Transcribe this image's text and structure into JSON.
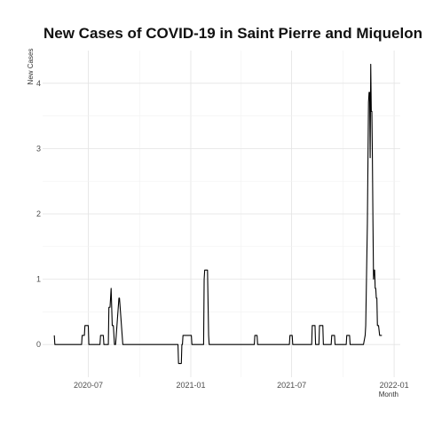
{
  "chart_data": {
    "type": "line",
    "title": "New Cases of COVID-19 in Saint Pierre and Miquelon",
    "xlabel": "Month",
    "ylabel": "New Cases",
    "x_tick_labels": [
      "2020-07",
      "2021-01",
      "2021-07",
      "2022-01"
    ],
    "y_tick_labels": [
      "0",
      "1",
      "2",
      "3",
      "4"
    ],
    "xlim": [
      "2020-04-10",
      "2022-01-12"
    ],
    "ylim": [
      -0.5,
      4.5
    ],
    "grid": true,
    "legend": "none",
    "line_color": "#000000",
    "series": [
      {
        "x": [
          "2020-05-01",
          "2020-05-02",
          "2020-06-19",
          "2020-06-20",
          "2020-06-24",
          "2020-06-25",
          "2020-07-01",
          "2020-07-02",
          "2020-07-22",
          "2020-07-23",
          "2020-07-28",
          "2020-07-29",
          "2020-08-06",
          "2020-08-07",
          "2020-08-09",
          "2020-08-10",
          "2020-08-11",
          "2020-08-13",
          "2020-08-15",
          "2020-08-17",
          "2020-08-19",
          "2020-08-25",
          "2020-08-26",
          "2020-09-01",
          "2020-09-02",
          "2020-12-09",
          "2020-12-10",
          "2020-12-15",
          "2020-12-16",
          "2020-12-17",
          "2020-12-18",
          "2021-01-02",
          "2021-01-03",
          "2021-01-24",
          "2021-01-25",
          "2021-01-26",
          "2021-01-31",
          "2021-02-02",
          "2021-02-03",
          "2021-04-25",
          "2021-04-26",
          "2021-04-30",
          "2021-05-01",
          "2021-06-27",
          "2021-06-28",
          "2021-07-02",
          "2021-07-03",
          "2021-08-06",
          "2021-08-07",
          "2021-08-12",
          "2021-08-13",
          "2021-08-19",
          "2021-08-20",
          "2021-08-26",
          "2021-08-27",
          "2021-09-10",
          "2021-09-11",
          "2021-09-16",
          "2021-09-17",
          "2021-10-07",
          "2021-10-08",
          "2021-10-13",
          "2021-10-14",
          "2021-11-07",
          "2021-11-10",
          "2021-11-11",
          "2021-11-14",
          "2021-11-16",
          "2021-11-17",
          "2021-11-18",
          "2021-11-19",
          "2021-11-20",
          "2021-11-21",
          "2021-11-22",
          "2021-11-23",
          "2021-11-24",
          "2021-11-25",
          "2021-11-26",
          "2021-11-27",
          "2021-11-28",
          "2021-11-29",
          "2021-11-30",
          "2021-12-01",
          "2021-12-02",
          "2021-12-04",
          "2021-12-06",
          "2021-12-07",
          "2021-12-08",
          "2021-12-09",
          "2021-12-10"
        ],
        "y": [
          0.14,
          0,
          0,
          0.14,
          0.14,
          0.29,
          0.29,
          0,
          0,
          0.14,
          0.14,
          0,
          0,
          0.57,
          0.57,
          0.71,
          0.86,
          0.29,
          0.29,
          0,
          0,
          0.71,
          0.71,
          0,
          0,
          0,
          -0.29,
          -0.29,
          0,
          0,
          0.14,
          0.14,
          0,
          0,
          1.0,
          1.14,
          1.14,
          0.14,
          0,
          0,
          0.14,
          0.14,
          0,
          0,
          0.14,
          0.14,
          0,
          0,
          0.29,
          0.29,
          0,
          0,
          0.29,
          0.29,
          0,
          0,
          0.14,
          0.14,
          0,
          0,
          0.14,
          0.14,
          0,
          0,
          0.14,
          0.29,
          1.86,
          3.71,
          3.86,
          3.86,
          2.86,
          4.29,
          3.57,
          3.57,
          2.86,
          1.86,
          1.0,
          1.14,
          1.14,
          0.86,
          0.86,
          0.71,
          0.71,
          0.29,
          0.29,
          0.14,
          0.14,
          0.14,
          0.14,
          0.14
        ]
      }
    ]
  }
}
